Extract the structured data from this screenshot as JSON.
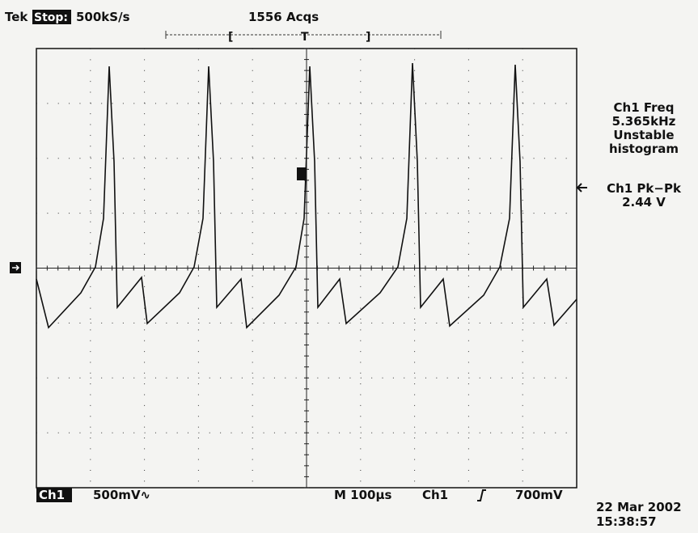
{
  "header": {
    "brand": "Tek",
    "status": "Stop:",
    "sample_rate": "500kS/s",
    "acquisitions": "1556 Acqs"
  },
  "trigger_bar": {
    "left": "[",
    "mark": "T",
    "right": "]"
  },
  "measurements": [
    {
      "lines": [
        "Ch1 Freq",
        "5.365kHz",
        "Unstable",
        "histogram"
      ]
    },
    {
      "lines": [
        "Ch1 Pk−Pk",
        "2.44 V"
      ]
    }
  ],
  "footer": {
    "channel": "Ch1",
    "scale": "500mV∿",
    "timebase": "M 100µs",
    "trigger_source": "Ch1",
    "trigger_level": "700mV",
    "date": "22 Mar 2002",
    "time": "15:38:57"
  }
}
